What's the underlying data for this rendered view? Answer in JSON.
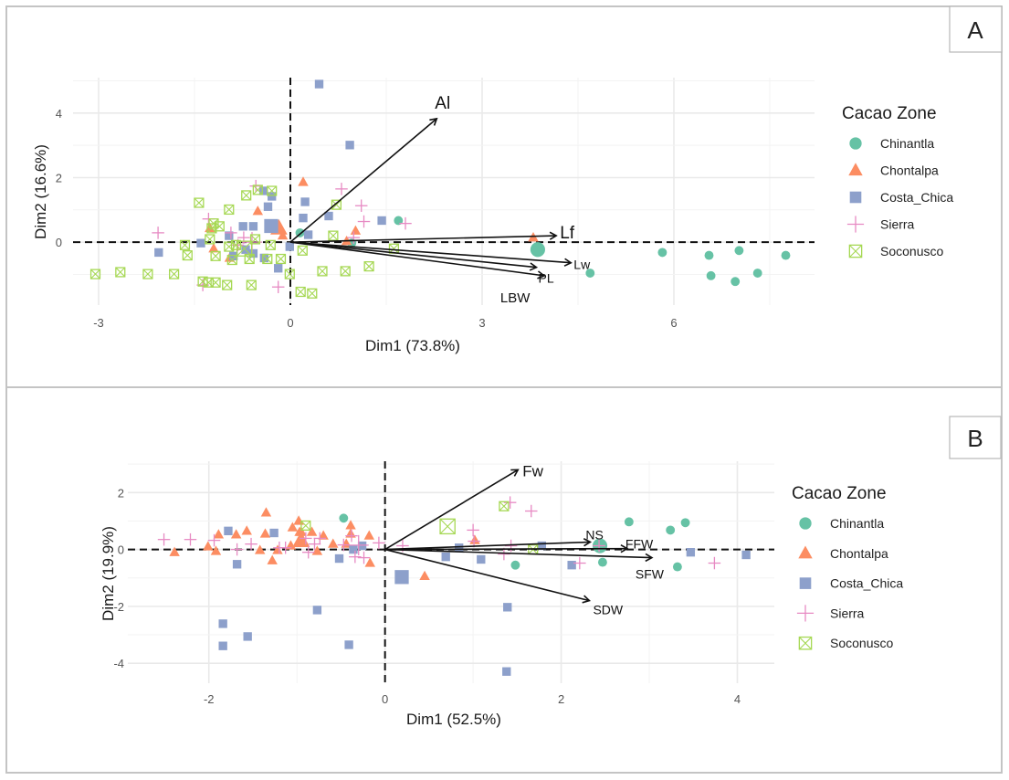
{
  "colors": {
    "Chinantla": "#66c2a5",
    "Chontalpa": "#fc8d62",
    "Costa_Chica": "#8da0cb",
    "Sierra": "#e78ac3",
    "Soconusco": "#a6d854"
  },
  "chart_data": [
    {
      "panel": "A",
      "type": "scatter",
      "subtype": "pca-biplot",
      "title": "",
      "xlabel": "Dim1 (73.8%)",
      "ylabel": "Dim2 (16.6%)",
      "xlim": [
        -3.4,
        8.2
      ],
      "ylim": [
        -1.95,
        5.1
      ],
      "xticks": [
        -3,
        0,
        3,
        6
      ],
      "yticks": [
        0,
        2,
        4
      ],
      "grid": true,
      "legend": {
        "title": "Cacao Zone",
        "position": "right",
        "entries": [
          "Chinantla",
          "Chontalpa",
          "Costa_Chica",
          "Sierra",
          "Soconusco"
        ]
      },
      "variables": [
        {
          "name": "Al",
          "x": 2.29,
          "y": 3.83
        },
        {
          "name": "Lf",
          "x": 4.16,
          "y": 0.2
        },
        {
          "name": "Lw",
          "x": 4.39,
          "y": -0.64
        },
        {
          "name": "PL",
          "x": 3.85,
          "y": -0.78
        },
        {
          "name": "LBW",
          "x": 3.97,
          "y": -1.04
        }
      ],
      "series": [
        {
          "name": "Chinantla",
          "shape": "circle",
          "points": [
            [
              4.69,
              -0.96
            ],
            [
              5.82,
              -0.32
            ],
            [
              6.55,
              -0.41
            ],
            [
              7.02,
              -0.26
            ],
            [
              7.75,
              -0.41
            ],
            [
              6.58,
              -1.04
            ],
            [
              6.96,
              -1.22
            ],
            [
              7.31,
              -0.96
            ],
            [
              1.69,
              0.67
            ],
            [
              0.96,
              -0.03
            ],
            [
              0.15,
              0.29
            ]
          ],
          "centroid": [
            3.87,
            -0.23
          ]
        },
        {
          "name": "Chontalpa",
          "shape": "triangle",
          "points": [
            [
              0.2,
              1.86
            ],
            [
              0.88,
              0.03
            ],
            [
              1.02,
              0.35
            ],
            [
              -1.26,
              0.43
            ],
            [
              -0.51,
              0.96
            ],
            [
              -0.12,
              0.2
            ],
            [
              -0.95,
              -0.49
            ],
            [
              -1.2,
              -0.2
            ],
            [
              3.8,
              0.14
            ]
          ],
          "centroid": [
            -0.18,
            0.43
          ]
        },
        {
          "name": "Costa_Chica",
          "shape": "square",
          "points": [
            [
              0.45,
              4.9
            ],
            [
              0.93,
              3.01
            ],
            [
              -2.06,
              -0.32
            ],
            [
              -1.4,
              -0.03
            ],
            [
              -0.74,
              0.49
            ],
            [
              -0.58,
              0.49
            ],
            [
              -0.42,
              1.59
            ],
            [
              -0.35,
              1.1
            ],
            [
              -0.7,
              -0.23
            ],
            [
              -0.89,
              -0.43
            ],
            [
              -0.19,
              -0.81
            ],
            [
              -0.01,
              -0.14
            ],
            [
              0.23,
              1.25
            ],
            [
              0.2,
              0.75
            ],
            [
              0.28,
              0.23
            ],
            [
              0.6,
              0.81
            ],
            [
              1.43,
              0.67
            ],
            [
              -0.58,
              -0.35
            ],
            [
              -0.41,
              -0.49
            ],
            [
              -0.96,
              0.2
            ],
            [
              -0.29,
              1.42
            ]
          ],
          "centroid": [
            -0.3,
            0.5
          ]
        },
        {
          "name": "Sierra",
          "shape": "plus",
          "points": [
            [
              -2.07,
              0.29
            ],
            [
              -0.54,
              1.74
            ],
            [
              0.8,
              1.65
            ],
            [
              1.11,
              1.13
            ],
            [
              1.15,
              0.64
            ],
            [
              1.8,
              0.58
            ],
            [
              0.99,
              0.14
            ],
            [
              -1.37,
              -1.33
            ],
            [
              -0.19,
              -1.39
            ],
            [
              -1.28,
              0.72
            ],
            [
              -0.93,
              0.29
            ],
            [
              -0.82,
              -0.09
            ],
            [
              -0.73,
              0.14
            ]
          ],
          "centroid": [
            -0.6,
            0.0
          ]
        },
        {
          "name": "Soconusco",
          "shape": "square-cross",
          "points": [
            [
              -3.05,
              -0.99
            ],
            [
              -2.66,
              -0.93
            ],
            [
              -2.23,
              -0.99
            ],
            [
              -1.82,
              -0.99
            ],
            [
              -1.61,
              -0.41
            ],
            [
              -1.23,
              0.43
            ],
            [
              -1.43,
              1.22
            ],
            [
              -0.96,
              1.01
            ],
            [
              -1.2,
              0.58
            ],
            [
              -1.11,
              0.49
            ],
            [
              -1.26,
              0.09
            ],
            [
              -1.37,
              -1.22
            ],
            [
              -1.28,
              -1.25
            ],
            [
              -1.17,
              -1.25
            ],
            [
              -0.99,
              -1.33
            ],
            [
              -0.61,
              -1.33
            ],
            [
              -0.69,
              1.45
            ],
            [
              -0.51,
              1.62
            ],
            [
              -0.29,
              1.59
            ],
            [
              -0.64,
              -0.52
            ],
            [
              -0.36,
              -0.52
            ],
            [
              -0.15,
              -0.52
            ],
            [
              -0.01,
              -0.99
            ],
            [
              0.19,
              -0.26
            ],
            [
              0.16,
              -1.54
            ],
            [
              0.34,
              -1.59
            ],
            [
              0.67,
              0.2
            ],
            [
              0.86,
              -0.9
            ],
            [
              1.23,
              -0.75
            ],
            [
              1.62,
              -0.2
            ],
            [
              0.5,
              -0.9
            ],
            [
              0.72,
              1.16
            ],
            [
              -0.96,
              -0.14
            ],
            [
              -0.85,
              -0.09
            ],
            [
              -0.55,
              0.09
            ],
            [
              -0.31,
              -0.09
            ],
            [
              -1.65,
              -0.09
            ],
            [
              -1.17,
              -0.43
            ],
            [
              -0.91,
              -0.55
            ]
          ],
          "centroid": [
            -0.72,
            -0.2
          ]
        }
      ]
    },
    {
      "panel": "B",
      "type": "scatter",
      "subtype": "pca-biplot",
      "title": "",
      "xlabel": "Dim1 (52.5%)",
      "ylabel": "Dim2 (19.9%)",
      "xlim": [
        -2.92,
        4.42
      ],
      "ylim": [
        -4.7,
        3.1
      ],
      "xticks": [
        -2,
        0,
        2,
        4
      ],
      "yticks": [
        -4,
        -2,
        0,
        2
      ],
      "grid": true,
      "legend": {
        "title": "Cacao Zone",
        "position": "right",
        "entries": [
          "Chinantla",
          "Chontalpa",
          "Costa_Chica",
          "Sierra",
          "Soconusco"
        ]
      },
      "variables": [
        {
          "name": "Fw",
          "x": 1.51,
          "y": 2.8
        },
        {
          "name": "NS",
          "x": 2.33,
          "y": 0.26
        },
        {
          "name": "FFW",
          "x": 2.75,
          "y": 0.03
        },
        {
          "name": "SFW",
          "x": 3.03,
          "y": -0.29
        },
        {
          "name": "SDW",
          "x": 2.32,
          "y": -1.8
        }
      ],
      "series": [
        {
          "name": "Chinantla",
          "shape": "circle",
          "points": [
            [
              -0.47,
              1.1
            ],
            [
              1.48,
              -0.55
            ],
            [
              2.44,
              0.13
            ],
            [
              2.47,
              -0.45
            ],
            [
              2.77,
              0.97
            ],
            [
              3.24,
              0.68
            ],
            [
              3.41,
              0.94
            ],
            [
              3.32,
              -0.61
            ]
          ],
          "centroid": [
            2.44,
            0.13
          ]
        },
        {
          "name": "Chontalpa",
          "shape": "triangle",
          "points": [
            [
              -2.39,
              -0.1
            ],
            [
              -1.89,
              0.52
            ],
            [
              -2.01,
              0.1
            ],
            [
              -1.69,
              0.52
            ],
            [
              -1.35,
              1.29
            ],
            [
              -1.57,
              0.65
            ],
            [
              -1.36,
              0.55
            ],
            [
              -1.22,
              -0.03
            ],
            [
              -1.05,
              0.77
            ],
            [
              -0.98,
              1.0
            ],
            [
              -0.97,
              0.61
            ],
            [
              -0.83,
              0.61
            ],
            [
              -0.98,
              0.29
            ],
            [
              -1.07,
              0.13
            ],
            [
              -0.7,
              0.48
            ],
            [
              -0.77,
              -0.06
            ],
            [
              -0.39,
              0.84
            ],
            [
              -0.39,
              0.55
            ],
            [
              -0.44,
              0.19
            ],
            [
              -0.18,
              0.48
            ],
            [
              -0.17,
              -0.48
            ],
            [
              -1.28,
              -0.39
            ],
            [
              -1.92,
              -0.06
            ],
            [
              -1.42,
              -0.03
            ],
            [
              0.45,
              -0.94
            ],
            [
              1.02,
              0.32
            ],
            [
              -0.59,
              0.19
            ],
            [
              -0.95,
              0.61
            ]
          ],
          "centroid": [
            -0.95,
            0.3
          ]
        },
        {
          "name": "Costa_Chica",
          "shape": "square",
          "points": [
            [
              -1.78,
              0.65
            ],
            [
              -1.26,
              0.58
            ],
            [
              -1.68,
              -0.52
            ],
            [
              -1.84,
              -2.61
            ],
            [
              -1.84,
              -3.39
            ],
            [
              -1.56,
              -3.06
            ],
            [
              -0.77,
              -2.13
            ],
            [
              -0.41,
              -3.35
            ],
            [
              -0.52,
              -0.32
            ],
            [
              -0.36,
              0.0
            ],
            [
              -0.26,
              0.13
            ],
            [
              0.69,
              -0.26
            ],
            [
              0.84,
              0.06
            ],
            [
              1.09,
              -0.35
            ],
            [
              1.39,
              -2.03
            ],
            [
              1.38,
              -4.29
            ],
            [
              1.78,
              0.13
            ],
            [
              2.12,
              -0.55
            ],
            [
              3.47,
              -0.1
            ],
            [
              4.1,
              -0.19
            ]
          ],
          "centroid": [
            0.19,
            -0.97
          ]
        },
        {
          "name": "Sierra",
          "shape": "plus",
          "points": [
            [
              -2.51,
              0.35
            ],
            [
              -2.21,
              0.35
            ],
            [
              -1.94,
              0.32
            ],
            [
              -1.68,
              0.0
            ],
            [
              -1.52,
              0.19
            ],
            [
              -1.2,
              0.06
            ],
            [
              -1.13,
              0.06
            ],
            [
              -0.9,
              0.39
            ],
            [
              -0.87,
              -0.1
            ],
            [
              -0.8,
              0.19
            ],
            [
              -0.74,
              0.39
            ],
            [
              -0.47,
              0.16
            ],
            [
              -0.38,
              0.48
            ],
            [
              -0.34,
              -0.26
            ],
            [
              -0.24,
              -0.29
            ],
            [
              -0.07,
              0.23
            ],
            [
              0.2,
              0.13
            ],
            [
              1.0,
              0.68
            ],
            [
              1.01,
              0.29
            ],
            [
              1.42,
              1.65
            ],
            [
              1.66,
              1.35
            ],
            [
              1.35,
              -0.16
            ],
            [
              1.43,
              0.13
            ],
            [
              2.21,
              -0.48
            ],
            [
              2.43,
              0.13
            ],
            [
              3.74,
              -0.48
            ]
          ],
          "centroid": [
            -0.3,
            0.15
          ]
        },
        {
          "name": "Soconusco",
          "shape": "square-cross",
          "points": [
            [
              -0.9,
              0.84
            ],
            [
              1.35,
              1.52
            ],
            [
              1.68,
              0.0
            ]
          ],
          "centroid": [
            0.71,
            0.81
          ]
        }
      ]
    }
  ]
}
